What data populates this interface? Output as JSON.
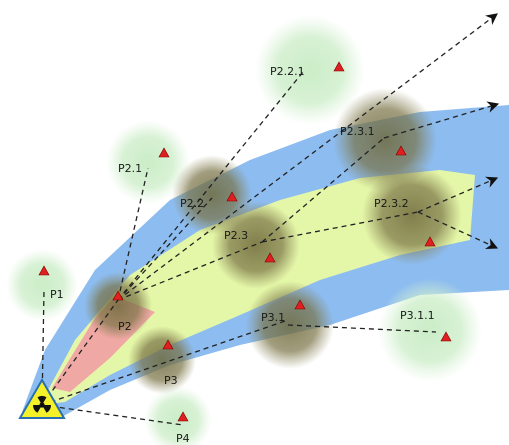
{
  "diagram": {
    "source_symbol": "radiation-hazard",
    "colors": {
      "plume_outer": "#8cbcf0",
      "plume_middle": "#e4f7a8",
      "plume_core": "#f0a8a4",
      "light_zone": "#c8ecc4",
      "dark_zone": "#7a7346",
      "marker": "#e02020",
      "path_line": "#222222"
    },
    "nodes": [
      {
        "id": "P1",
        "label": "P1",
        "zone": "light"
      },
      {
        "id": "P2",
        "label": "P2",
        "zone": "dark"
      },
      {
        "id": "P2.1",
        "label": "P2.1",
        "zone": "light"
      },
      {
        "id": "P2.2",
        "label": "P2.2",
        "zone": "dark"
      },
      {
        "id": "P2.2.1",
        "label": "P2.2.1",
        "zone": "light"
      },
      {
        "id": "P2.3",
        "label": "P2.3",
        "zone": "dark"
      },
      {
        "id": "P2.3.1",
        "label": "P2.3.1",
        "zone": "dark"
      },
      {
        "id": "P2.3.2",
        "label": "P2.3.2",
        "zone": "dark"
      },
      {
        "id": "P3",
        "label": "P3",
        "zone": "dark"
      },
      {
        "id": "P3.1",
        "label": "P3.1",
        "zone": "dark"
      },
      {
        "id": "P3.1.1",
        "label": "P3.1.1",
        "zone": "light"
      },
      {
        "id": "P4",
        "label": "P4",
        "zone": "light"
      }
    ]
  }
}
